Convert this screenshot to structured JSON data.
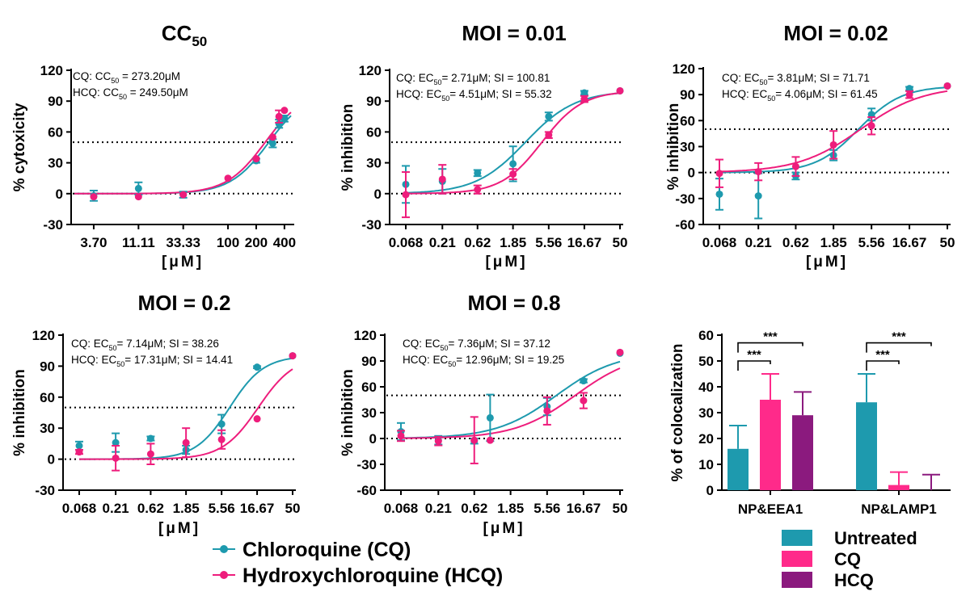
{
  "colors": {
    "cq": "#1e9aae",
    "hcq": "#ee1d7c",
    "untreated": "#1e9aae",
    "cq_bar": "#ff2a8a",
    "hcq_bar": "#8b1a7e",
    "axis": "#000000"
  },
  "chart_data": [
    {
      "id": "cc50",
      "type": "line",
      "title_main": "CC",
      "title_sub": "50",
      "ylabel": "% cytoxicity",
      "xlabel": "[μM]",
      "xscale": "log",
      "ylim": [
        -30,
        120
      ],
      "yticks": [
        "120",
        "90",
        "60",
        "30",
        "0",
        "-30"
      ],
      "xlim": [
        2.3,
        470
      ],
      "xticks": [
        {
          "v": 3.7,
          "label": "3.70"
        },
        {
          "v": 11.11,
          "label": "11.11"
        },
        {
          "v": 33.33,
          "label": "33.33"
        },
        {
          "v": 100,
          "label": "100"
        },
        {
          "v": 200,
          "label": "200"
        },
        {
          "v": 400,
          "label": "400"
        }
      ],
      "hlines": [
        50,
        0
      ],
      "annotations": [
        {
          "pre": "CQ: CC",
          "sub": "50",
          "post": " = 273.20μM"
        },
        {
          "pre": "HCQ: CC",
          "sub": "50",
          "post": " = 249.50μM"
        }
      ],
      "curves": [
        {
          "series": "CQ",
          "ec50": 273.2,
          "bottom": 0,
          "top": 100,
          "hill": 2.1
        },
        {
          "series": "HCQ",
          "ec50": 249.5,
          "bottom": 0,
          "top": 100,
          "hill": 2.1
        }
      ],
      "points": [
        {
          "series": "CQ",
          "x": 3.7,
          "y": -2,
          "err": 5
        },
        {
          "series": "CQ",
          "x": 11.11,
          "y": 5,
          "err": 6
        },
        {
          "series": "CQ",
          "x": 33.33,
          "y": -1,
          "err": 3
        },
        {
          "series": "CQ",
          "x": 200,
          "y": 32,
          "err": 2
        },
        {
          "series": "CQ",
          "x": 300,
          "y": 49,
          "err": 4
        },
        {
          "series": "CQ",
          "x": 350,
          "y": 68,
          "err": 4
        },
        {
          "series": "CQ",
          "x": 400,
          "y": 73,
          "err": 3
        },
        {
          "series": "HCQ",
          "x": 3.7,
          "y": -3,
          "err": 0
        },
        {
          "series": "HCQ",
          "x": 11.11,
          "y": -3,
          "err": 0
        },
        {
          "series": "HCQ",
          "x": 33.33,
          "y": -1,
          "err": 0
        },
        {
          "series": "HCQ",
          "x": 100,
          "y": 15,
          "err": 0
        },
        {
          "series": "HCQ",
          "x": 200,
          "y": 34,
          "err": 0
        },
        {
          "series": "HCQ",
          "x": 300,
          "y": 55,
          "err": 0
        },
        {
          "series": "HCQ",
          "x": 350,
          "y": 75,
          "err": 6
        },
        {
          "series": "HCQ",
          "x": 400,
          "y": 81,
          "err": 0
        }
      ]
    },
    {
      "id": "moi001",
      "type": "line",
      "title_main": "MOI = 0.01",
      "ylabel": "% inhibition",
      "xlabel": "[μM]",
      "xscale": "log",
      "ylim": [
        -30,
        120
      ],
      "yticks": [
        "120",
        "90",
        "60",
        "30",
        "0",
        "-30"
      ],
      "xlim": [
        0.068,
        50
      ],
      "xticks": [
        {
          "v": 0.068,
          "label": "0.068"
        },
        {
          "v": 0.21,
          "label": "0.21"
        },
        {
          "v": 0.62,
          "label": "0.62"
        },
        {
          "v": 1.85,
          "label": "1.85"
        },
        {
          "v": 5.56,
          "label": "5.56"
        },
        {
          "v": 16.67,
          "label": "16.67"
        },
        {
          "v": 50,
          "label": "50"
        }
      ],
      "hlines": [
        50,
        0
      ],
      "annotations": [
        {
          "pre": "CQ: EC",
          "sub": "50",
          "post": "= 2.71μM; SI = 100.81"
        },
        {
          "pre": "HCQ: EC",
          "sub": "50",
          "post": "= 4.51μM; SI = 55.32"
        }
      ],
      "curves": [
        {
          "series": "CQ",
          "ec50": 2.71,
          "bottom": 0,
          "top": 100,
          "hill": 1.3
        },
        {
          "series": "HCQ",
          "ec50": 4.51,
          "bottom": 0,
          "top": 100,
          "hill": 1.6
        }
      ],
      "points": [
        {
          "series": "CQ",
          "x": 0.068,
          "y": 9,
          "err": 18
        },
        {
          "series": "CQ",
          "x": 0.21,
          "y": 12,
          "err": 12
        },
        {
          "series": "CQ",
          "x": 0.62,
          "y": 20,
          "err": 3
        },
        {
          "series": "CQ",
          "x": 1.85,
          "y": 29,
          "err": 17
        },
        {
          "series": "CQ",
          "x": 5.56,
          "y": 75,
          "err": 4
        },
        {
          "series": "CQ",
          "x": 16.67,
          "y": 98,
          "err": 2
        },
        {
          "series": "CQ",
          "x": 50,
          "y": 100,
          "err": 0
        },
        {
          "series": "HCQ",
          "x": 0.068,
          "y": -1,
          "err": 22
        },
        {
          "series": "HCQ",
          "x": 0.21,
          "y": 14,
          "err": 14
        },
        {
          "series": "HCQ",
          "x": 0.62,
          "y": 4,
          "err": 4
        },
        {
          "series": "HCQ",
          "x": 1.85,
          "y": 19,
          "err": 5
        },
        {
          "series": "HCQ",
          "x": 5.56,
          "y": 57,
          "err": 3
        },
        {
          "series": "HCQ",
          "x": 16.67,
          "y": 92,
          "err": 3
        },
        {
          "series": "HCQ",
          "x": 50,
          "y": 100,
          "err": 0
        }
      ]
    },
    {
      "id": "moi002",
      "type": "line",
      "title_main": "MOI = 0.02",
      "ylabel": "% inhibition",
      "xlabel": "[μM]",
      "xscale": "log",
      "ylim": [
        -60,
        120
      ],
      "yticks": [
        "120",
        "90",
        "60",
        "30",
        "0",
        "-30",
        "-60"
      ],
      "xlim": [
        0.068,
        50
      ],
      "xticks": [
        {
          "v": 0.068,
          "label": "0.068"
        },
        {
          "v": 0.21,
          "label": "0.21"
        },
        {
          "v": 0.62,
          "label": "0.62"
        },
        {
          "v": 1.85,
          "label": "1.85"
        },
        {
          "v": 5.56,
          "label": "5.56"
        },
        {
          "v": 16.67,
          "label": "16.67"
        },
        {
          "v": 50,
          "label": "50"
        }
      ],
      "hlines": [
        50,
        0
      ],
      "annotations": [
        {
          "pre": "CQ: EC",
          "sub": "50",
          "post": "= 3.81μM; SI = 71.71"
        },
        {
          "pre": "HCQ: EC",
          "sub": "50",
          "post": "= 4.06μM; SI = 61.45"
        }
      ],
      "curves": [
        {
          "series": "CQ",
          "ec50": 3.81,
          "bottom": 0,
          "top": 100,
          "hill": 1.6
        },
        {
          "series": "HCQ",
          "ec50": 4.06,
          "bottom": 0,
          "top": 100,
          "hill": 1.1
        }
      ],
      "points": [
        {
          "series": "CQ",
          "x": 0.068,
          "y": -25,
          "err": 18
        },
        {
          "series": "CQ",
          "x": 0.21,
          "y": -27,
          "err": 26
        },
        {
          "series": "CQ",
          "x": 0.62,
          "y": -4,
          "err": 4
        },
        {
          "series": "CQ",
          "x": 1.85,
          "y": 20,
          "err": 6
        },
        {
          "series": "CQ",
          "x": 5.56,
          "y": 67,
          "err": 7
        },
        {
          "series": "CQ",
          "x": 16.67,
          "y": 97,
          "err": 2
        },
        {
          "series": "CQ",
          "x": 50,
          "y": 100,
          "err": 0
        },
        {
          "series": "HCQ",
          "x": 0.068,
          "y": -1,
          "err": 16
        },
        {
          "series": "HCQ",
          "x": 0.21,
          "y": 1,
          "err": 10
        },
        {
          "series": "HCQ",
          "x": 0.62,
          "y": 7,
          "err": 11
        },
        {
          "series": "HCQ",
          "x": 1.85,
          "y": 32,
          "err": 16
        },
        {
          "series": "HCQ",
          "x": 5.56,
          "y": 54,
          "err": 10
        },
        {
          "series": "HCQ",
          "x": 16.67,
          "y": 90,
          "err": 4
        },
        {
          "series": "HCQ",
          "x": 50,
          "y": 100,
          "err": 0
        }
      ]
    },
    {
      "id": "moi02",
      "type": "line",
      "title_main": "MOI = 0.2",
      "ylabel": "% inhibition",
      "xlabel": "[μM]",
      "xscale": "log",
      "ylim": [
        -30,
        120
      ],
      "yticks": [
        "120",
        "90",
        "60",
        "30",
        "0",
        "-30"
      ],
      "xlim": [
        0.068,
        50
      ],
      "xticks": [
        {
          "v": 0.068,
          "label": "0.068"
        },
        {
          "v": 0.21,
          "label": "0.21"
        },
        {
          "v": 0.62,
          "label": "0.62"
        },
        {
          "v": 1.85,
          "label": "1.85"
        },
        {
          "v": 5.56,
          "label": "5.56"
        },
        {
          "v": 16.67,
          "label": "16.67"
        },
        {
          "v": 50,
          "label": "50"
        }
      ],
      "hlines": [
        50,
        0
      ],
      "annotations": [
        {
          "pre": "CQ: EC",
          "sub": "50",
          "post": "= 7.14μM; SI = 38.26"
        },
        {
          "pre": "HCQ: EC",
          "sub": "50",
          "post": "= 17.31μM; SI = 14.41"
        }
      ],
      "curves": [
        {
          "series": "CQ",
          "ec50": 7.14,
          "bottom": 0,
          "top": 100,
          "hill": 1.9
        },
        {
          "series": "HCQ",
          "ec50": 17.31,
          "bottom": 0,
          "top": 100,
          "hill": 1.8
        }
      ],
      "points": [
        {
          "series": "CQ",
          "x": 0.068,
          "y": 13,
          "err": 4
        },
        {
          "series": "CQ",
          "x": 0.21,
          "y": 16,
          "err": 9
        },
        {
          "series": "CQ",
          "x": 0.62,
          "y": 20,
          "err": 2
        },
        {
          "series": "CQ",
          "x": 1.85,
          "y": 9,
          "err": 4
        },
        {
          "series": "CQ",
          "x": 5.56,
          "y": 34,
          "err": 9
        },
        {
          "series": "CQ",
          "x": 16.67,
          "y": 89,
          "err": 1
        },
        {
          "series": "CQ",
          "x": 50,
          "y": 100,
          "err": 0
        },
        {
          "series": "HCQ",
          "x": 0.068,
          "y": 7,
          "err": 2
        },
        {
          "series": "HCQ",
          "x": 0.21,
          "y": 1,
          "err": 12
        },
        {
          "series": "HCQ",
          "x": 0.62,
          "y": 5,
          "err": 10
        },
        {
          "series": "HCQ",
          "x": 1.85,
          "y": 16,
          "err": 14
        },
        {
          "series": "HCQ",
          "x": 5.56,
          "y": 19,
          "err": 9
        },
        {
          "series": "HCQ",
          "x": 16.67,
          "y": 39,
          "err": 0
        },
        {
          "series": "HCQ",
          "x": 50,
          "y": 100,
          "err": 0
        }
      ]
    },
    {
      "id": "moi08",
      "type": "line",
      "title_main": "MOI = 0.8",
      "ylabel": "% inhibition",
      "xlabel": "[μM]",
      "xscale": "log",
      "ylim": [
        -60,
        120
      ],
      "yticks": [
        "120",
        "90",
        "60",
        "30",
        "0",
        "-30",
        "-60"
      ],
      "xlim": [
        0.068,
        50
      ],
      "xticks": [
        {
          "v": 0.068,
          "label": "0.068"
        },
        {
          "v": 0.21,
          "label": "0.21"
        },
        {
          "v": 0.62,
          "label": "0.62"
        },
        {
          "v": 1.85,
          "label": "1.85"
        },
        {
          "v": 5.56,
          "label": "5.56"
        },
        {
          "v": 16.67,
          "label": "16.67"
        },
        {
          "v": 50,
          "label": "50"
        }
      ],
      "hlines": [
        50,
        0
      ],
      "annotations": [
        {
          "pre": "CQ: EC",
          "sub": "50",
          "post": "= 7.36μM; SI = 37.12"
        },
        {
          "pre": "HCQ: EC",
          "sub": "50",
          "post": "= 12.96μM; SI = 19.25"
        }
      ],
      "curves": [
        {
          "series": "CQ",
          "ec50": 7.36,
          "bottom": 0,
          "top": 100,
          "hill": 1.1
        },
        {
          "series": "HCQ",
          "ec50": 12.96,
          "bottom": 0,
          "top": 100,
          "hill": 1.1
        }
      ],
      "points": [
        {
          "series": "CQ",
          "x": 0.068,
          "y": 8,
          "err": 10
        },
        {
          "series": "CQ",
          "x": 0.21,
          "y": -2,
          "err": 5
        },
        {
          "series": "CQ",
          "x": 0.62,
          "y": -3,
          "err": 3
        },
        {
          "series": "CQ",
          "x": 1.0,
          "y": 24,
          "err": 27
        },
        {
          "series": "CQ",
          "x": 5.56,
          "y": 37,
          "err": 10
        },
        {
          "series": "CQ",
          "x": 16.67,
          "y": 67,
          "err": 2
        },
        {
          "series": "CQ",
          "x": 50,
          "y": 99,
          "err": 0
        },
        {
          "series": "HCQ",
          "x": 0.068,
          "y": 3,
          "err": 6
        },
        {
          "series": "HCQ",
          "x": 0.21,
          "y": -3,
          "err": 5
        },
        {
          "series": "HCQ",
          "x": 0.62,
          "y": -2,
          "err": 27
        },
        {
          "series": "HCQ",
          "x": 1.0,
          "y": -2,
          "err": 0
        },
        {
          "series": "HCQ",
          "x": 5.56,
          "y": 32,
          "err": 16
        },
        {
          "series": "HCQ",
          "x": 16.67,
          "y": 44,
          "err": 9
        },
        {
          "series": "HCQ",
          "x": 50,
          "y": 100,
          "err": 0
        }
      ]
    },
    {
      "id": "colocalization",
      "type": "bar",
      "ylabel": "% of colocalization",
      "ylim": [
        0,
        60
      ],
      "yticks": [
        "60",
        "50",
        "40",
        "30",
        "20",
        "10",
        "0"
      ],
      "categories": [
        "NP&EEA1",
        "NP&LAMP1"
      ],
      "series": [
        {
          "name": "Untreated",
          "values": [
            16,
            34
          ],
          "err": [
            9,
            11
          ]
        },
        {
          "name": "CQ",
          "values": [
            35,
            2
          ],
          "err": [
            10,
            5
          ]
        },
        {
          "name": "HCQ",
          "values": [
            29,
            0
          ],
          "err": [
            9,
            6
          ]
        }
      ],
      "significance": [
        {
          "group": 0,
          "from": 0,
          "to": 1,
          "label": "***",
          "y": 50
        },
        {
          "group": 0,
          "from": 0,
          "to": 2,
          "label": "***",
          "y": 57
        },
        {
          "group": 1,
          "from": 0,
          "to": 1,
          "label": "***",
          "y": 50
        },
        {
          "group": 1,
          "from": 0,
          "to": 2,
          "label": "***",
          "y": 57
        }
      ]
    }
  ],
  "legend_curves": [
    {
      "series": "CQ",
      "label": "Chloroquine (CQ)"
    },
    {
      "series": "HCQ",
      "label": "Hydroxychloroquine (HCQ)"
    }
  ],
  "legend_bars": [
    {
      "series": "Untreated",
      "label": "Untreated"
    },
    {
      "series": "CQ",
      "label": "CQ"
    },
    {
      "series": "HCQ",
      "label": "HCQ"
    }
  ]
}
